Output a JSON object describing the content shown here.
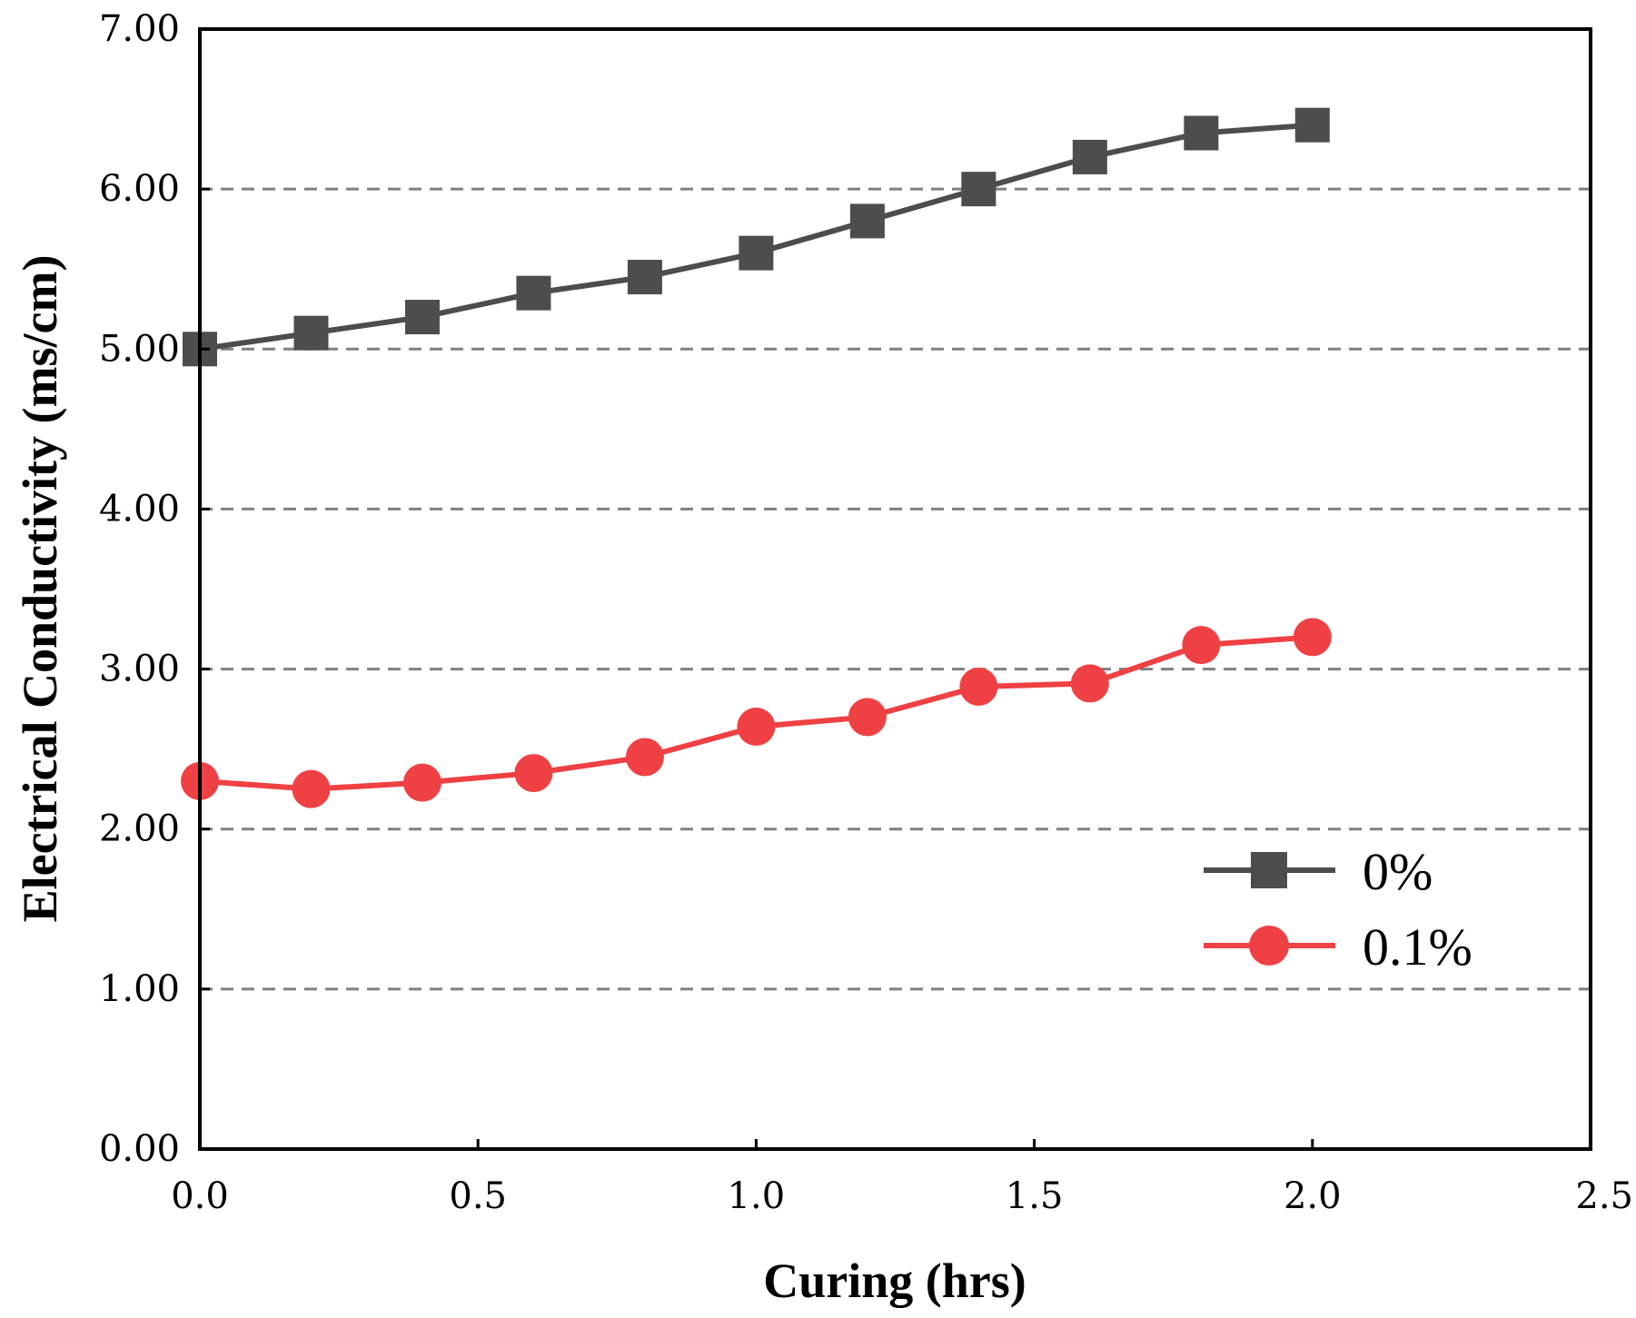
{
  "chart_data": {
    "type": "line",
    "title": "",
    "xlabel": "Curing (hrs)",
    "ylabel": "Electrical Conductivity (ms/cm)",
    "xlim": [
      0,
      2.5
    ],
    "ylim": [
      0,
      7
    ],
    "x_ticks": [
      "0.0",
      "0.5",
      "1.0",
      "1.5",
      "2.0",
      "2.5"
    ],
    "y_ticks": [
      "0.00",
      "1.00",
      "2.00",
      "3.00",
      "4.00",
      "5.00",
      "6.00",
      "7.00"
    ],
    "y_gridlines": [
      1,
      2,
      3,
      4,
      5,
      6
    ],
    "grid": "horizontal dashed",
    "legend_position": "lower-right",
    "x": [
      0.0,
      0.2,
      0.4,
      0.6,
      0.8,
      1.0,
      1.2,
      1.4,
      1.6,
      1.8,
      2.0
    ],
    "series": [
      {
        "name": "0%",
        "marker": "square",
        "color": "#4d4d4d",
        "values": [
          5.0,
          5.1,
          5.2,
          5.35,
          5.45,
          5.6,
          5.8,
          6.0,
          6.2,
          6.35,
          6.4
        ]
      },
      {
        "name": "0.1%",
        "marker": "circle",
        "color": "#ef4144",
        "values": [
          2.3,
          2.25,
          2.29,
          2.35,
          2.45,
          2.64,
          2.7,
          2.89,
          2.91,
          3.15,
          3.2
        ]
      }
    ]
  }
}
